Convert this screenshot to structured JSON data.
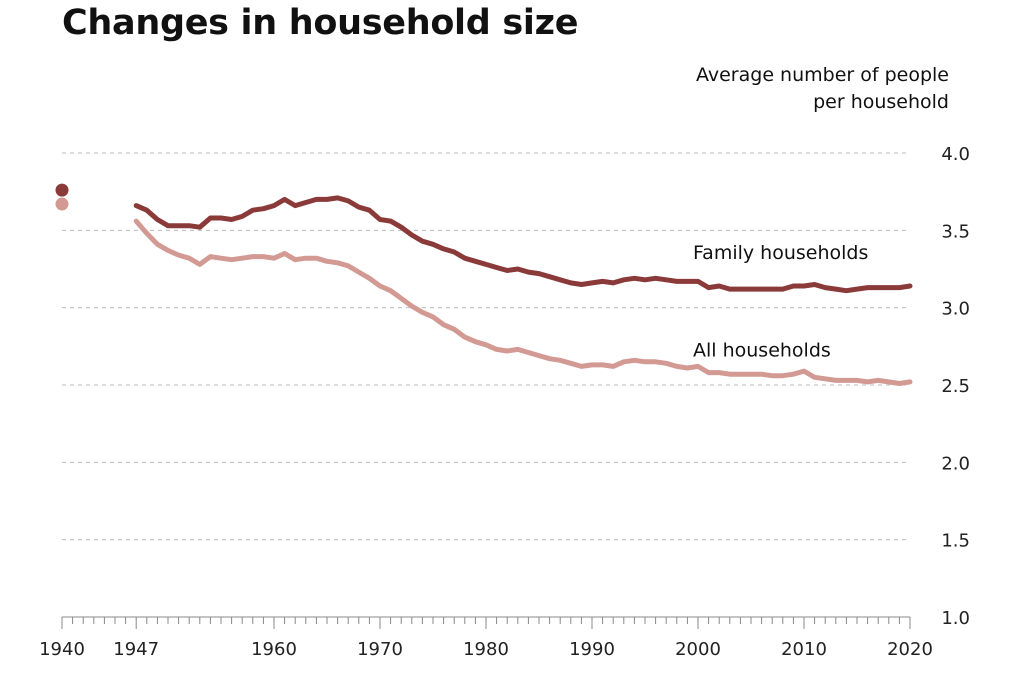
{
  "chart_data": {
    "type": "line",
    "title": "Changes in household size",
    "ylabel_line1": "Average number of people",
    "ylabel_line2": "per household",
    "xlim": [
      1940,
      2020
    ],
    "ylim": [
      1.0,
      4.0
    ],
    "yticks": [
      "1.0",
      "1.5",
      "2.0",
      "2.5",
      "3.0",
      "3.5",
      "4.0"
    ],
    "xticks": [
      1940,
      1947,
      1960,
      1970,
      1980,
      1990,
      2000,
      2010,
      2020
    ],
    "grid": true,
    "colors": {
      "family": "#8b3a3a",
      "all": "#d39a94"
    },
    "series": [
      {
        "name": "Family households",
        "point_1940": 3.76,
        "x": [
          1947,
          1948,
          1949,
          1950,
          1951,
          1952,
          1953,
          1954,
          1955,
          1956,
          1957,
          1958,
          1959,
          1960,
          1961,
          1962,
          1963,
          1964,
          1965,
          1966,
          1967,
          1968,
          1969,
          1970,
          1971,
          1972,
          1973,
          1974,
          1975,
          1976,
          1977,
          1978,
          1979,
          1980,
          1981,
          1982,
          1983,
          1984,
          1985,
          1986,
          1987,
          1988,
          1989,
          1990,
          1991,
          1992,
          1993,
          1994,
          1995,
          1996,
          1997,
          1998,
          1999,
          2000,
          2001,
          2002,
          2003,
          2004,
          2005,
          2006,
          2007,
          2008,
          2009,
          2010,
          2011,
          2012,
          2013,
          2014,
          2015,
          2016,
          2017,
          2018,
          2019,
          2020
        ],
        "values": [
          3.66,
          3.63,
          3.57,
          3.53,
          3.53,
          3.53,
          3.52,
          3.58,
          3.58,
          3.57,
          3.59,
          3.63,
          3.64,
          3.66,
          3.7,
          3.66,
          3.68,
          3.7,
          3.7,
          3.71,
          3.69,
          3.65,
          3.63,
          3.57,
          3.56,
          3.52,
          3.47,
          3.43,
          3.41,
          3.38,
          3.36,
          3.32,
          3.3,
          3.28,
          3.26,
          3.24,
          3.25,
          3.23,
          3.22,
          3.2,
          3.18,
          3.16,
          3.15,
          3.16,
          3.17,
          3.16,
          3.18,
          3.19,
          3.18,
          3.19,
          3.18,
          3.17,
          3.17,
          3.17,
          3.13,
          3.14,
          3.12,
          3.12,
          3.12,
          3.12,
          3.12,
          3.12,
          3.14,
          3.14,
          3.15,
          3.13,
          3.12,
          3.11,
          3.12,
          3.13,
          3.13,
          3.13,
          3.13,
          3.14
        ]
      },
      {
        "name": "All households",
        "point_1940": 3.67,
        "x": [
          1947,
          1948,
          1949,
          1950,
          1951,
          1952,
          1953,
          1954,
          1955,
          1956,
          1957,
          1958,
          1959,
          1960,
          1961,
          1962,
          1963,
          1964,
          1965,
          1966,
          1967,
          1968,
          1969,
          1970,
          1971,
          1972,
          1973,
          1974,
          1975,
          1976,
          1977,
          1978,
          1979,
          1980,
          1981,
          1982,
          1983,
          1984,
          1985,
          1986,
          1987,
          1988,
          1989,
          1990,
          1991,
          1992,
          1993,
          1994,
          1995,
          1996,
          1997,
          1998,
          1999,
          2000,
          2001,
          2002,
          2003,
          2004,
          2005,
          2006,
          2007,
          2008,
          2009,
          2010,
          2011,
          2012,
          2013,
          2014,
          2015,
          2016,
          2017,
          2018,
          2019,
          2020
        ],
        "values": [
          3.56,
          3.48,
          3.41,
          3.37,
          3.34,
          3.32,
          3.28,
          3.33,
          3.32,
          3.31,
          3.32,
          3.33,
          3.33,
          3.32,
          3.35,
          3.31,
          3.32,
          3.32,
          3.3,
          3.29,
          3.27,
          3.23,
          3.19,
          3.14,
          3.11,
          3.06,
          3.01,
          2.97,
          2.94,
          2.89,
          2.86,
          2.81,
          2.78,
          2.76,
          2.73,
          2.72,
          2.73,
          2.71,
          2.69,
          2.67,
          2.66,
          2.64,
          2.62,
          2.63,
          2.63,
          2.62,
          2.65,
          2.66,
          2.65,
          2.65,
          2.64,
          2.62,
          2.61,
          2.62,
          2.58,
          2.58,
          2.57,
          2.57,
          2.57,
          2.57,
          2.56,
          2.56,
          2.57,
          2.59,
          2.55,
          2.54,
          2.53,
          2.53,
          2.53,
          2.52,
          2.53,
          2.52,
          2.51,
          2.52
        ]
      }
    ]
  }
}
